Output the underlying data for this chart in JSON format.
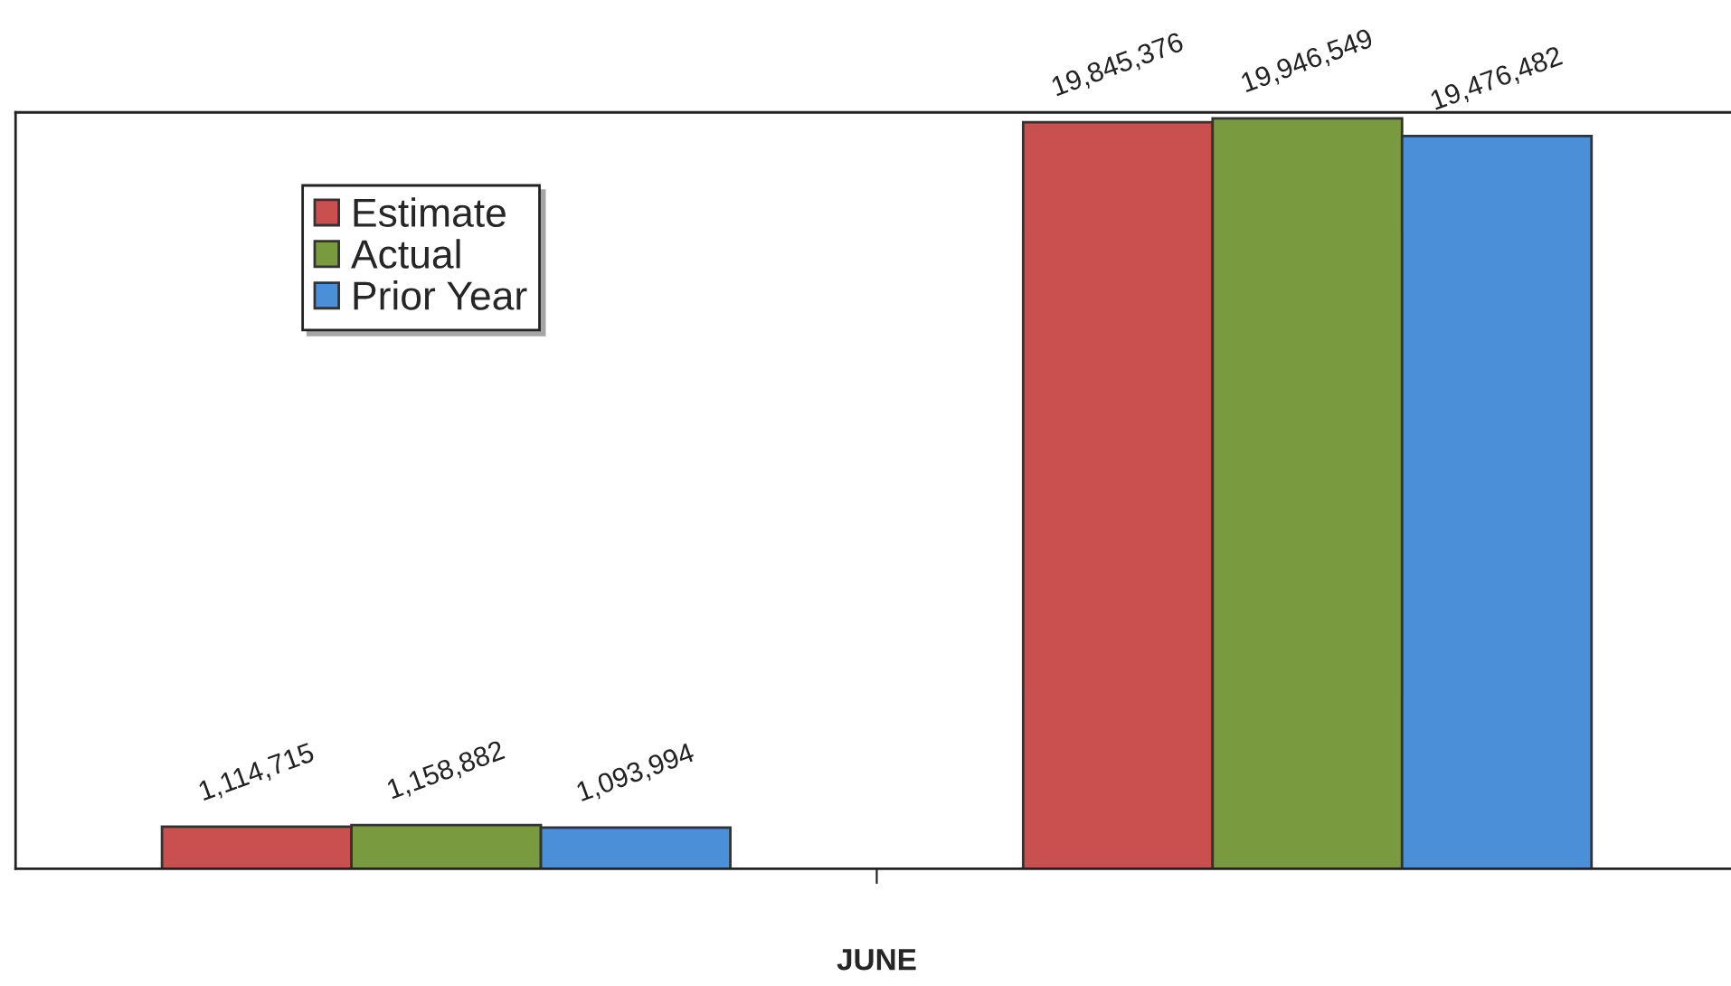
{
  "chart_data": {
    "type": "bar",
    "xlabel": "JUNE",
    "categories": [
      null,
      null
    ],
    "series": [
      {
        "name": "Estimate",
        "color": "#c9504f",
        "values": [
          1114715,
          19845376
        ],
        "value_labels": [
          "1,114,715",
          "19,845,376"
        ]
      },
      {
        "name": "Actual",
        "color": "#7a9a40",
        "values": [
          1158882,
          19946549
        ],
        "value_labels": [
          "1,158,882",
          "19,946,549"
        ]
      },
      {
        "name": "Prior Year",
        "color": "#4a8fd8",
        "values": [
          1093994,
          19476482
        ],
        "value_labels": [
          "1,093,994",
          "19,476,482"
        ]
      }
    ],
    "legend": "top left",
    "grid": false
  }
}
